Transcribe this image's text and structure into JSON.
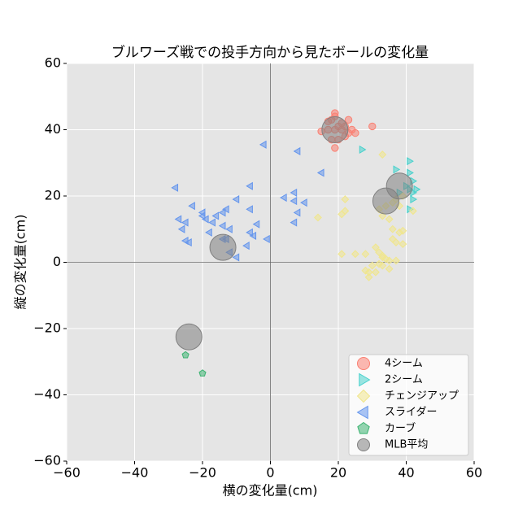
{
  "chart_data": {
    "type": "scatter",
    "title": "ブルワーズ戦での投手方向から見たボールの変化量",
    "xlabel": "横の変化量(cm)",
    "ylabel": "縦の変化量(cm)",
    "xlim": [
      -60,
      60
    ],
    "ylim": [
      -60,
      60
    ],
    "xticks": [
      {
        "value": -60,
        "label": "−60"
      },
      {
        "value": -40,
        "label": "−40"
      },
      {
        "value": -20,
        "label": "−20"
      },
      0,
      20,
      40,
      60
    ],
    "yticks": [
      {
        "value": -60,
        "label": "−60"
      },
      {
        "value": -40,
        "label": "−40"
      },
      {
        "value": -20,
        "label": "−20"
      },
      0,
      20,
      40,
      60
    ],
    "grid": true,
    "legend": "lower right",
    "series": [
      {
        "name": "4シーム",
        "color": "#fa8072",
        "marker": "o",
        "x": [
          15,
          17,
          18,
          19,
          19,
          20,
          21,
          22,
          23,
          24,
          25,
          19,
          20,
          18,
          30,
          22,
          17,
          21,
          23,
          19
        ],
        "values": [
          39.5,
          42.5,
          43,
          45,
          44,
          41,
          40,
          41,
          43,
          40,
          39,
          34.5,
          37,
          37,
          41,
          38,
          40,
          42,
          39,
          40
        ]
      },
      {
        "name": "2シーム",
        "color": "#48d1cc",
        "marker": ">",
        "x": [
          27,
          37,
          41,
          42,
          43,
          41,
          42,
          41,
          40,
          41,
          38,
          42
        ],
        "values": [
          34,
          28,
          30.5,
          24.5,
          22,
          22,
          19,
          16,
          23,
          27,
          21,
          21
        ]
      },
      {
        "name": "チェンジアップ",
        "color": "#f0e68c",
        "marker": "D",
        "x": [
          33,
          22,
          34,
          38,
          37,
          21,
          22,
          32,
          33,
          35,
          36,
          38,
          39,
          36,
          37,
          39,
          42,
          14,
          21,
          25,
          28,
          31,
          32,
          33,
          34,
          35,
          37,
          32,
          33,
          30,
          29,
          28,
          29,
          31,
          35,
          33,
          39,
          36
        ],
        "values": [
          32.5,
          19,
          17,
          17,
          19,
          14.5,
          15.5,
          16,
          14,
          13,
          10,
          9,
          9.5,
          7,
          6,
          5.5,
          15.5,
          13.5,
          2.5,
          2.5,
          2.5,
          4.5,
          3,
          2,
          1,
          0.5,
          0.5,
          -0.5,
          -1,
          -1,
          -3,
          -2.5,
          -4.5,
          -3,
          -2,
          1.5,
          20,
          18
        ]
      },
      {
        "name": "スライダー",
        "color": "#6495ed",
        "marker": "<",
        "x": [
          -28,
          -23,
          -20,
          -19,
          -20,
          -17,
          -16,
          -14,
          -13,
          -10,
          -6,
          -2,
          8,
          15,
          7,
          4,
          7,
          10,
          8,
          7,
          -6,
          -4,
          -6,
          -5,
          -1,
          -7,
          -12,
          -13,
          -14,
          -12,
          -10,
          -25,
          -24,
          -26,
          -27,
          -25,
          -18,
          -14
        ],
        "values": [
          22.5,
          17,
          14,
          13,
          15,
          12,
          14,
          15,
          16,
          19,
          23,
          35.5,
          33.5,
          27,
          21,
          19.5,
          18.5,
          18,
          15,
          12,
          16,
          11.5,
          9,
          8,
          7,
          5,
          10,
          7,
          7,
          3,
          1.5,
          6.5,
          6,
          10,
          13,
          12,
          9,
          11
        ]
      },
      {
        "name": "カーブ",
        "color": "#3cb371",
        "marker": "p",
        "x": [
          -25,
          -20
        ],
        "values": [
          -28,
          -33.5
        ]
      },
      {
        "name": "MLB平均",
        "color": "#808080",
        "marker": "o",
        "x": [
          19,
          38,
          34,
          -14,
          -24
        ],
        "values": [
          40,
          23,
          18.5,
          4.5,
          -22.5
        ]
      }
    ]
  }
}
